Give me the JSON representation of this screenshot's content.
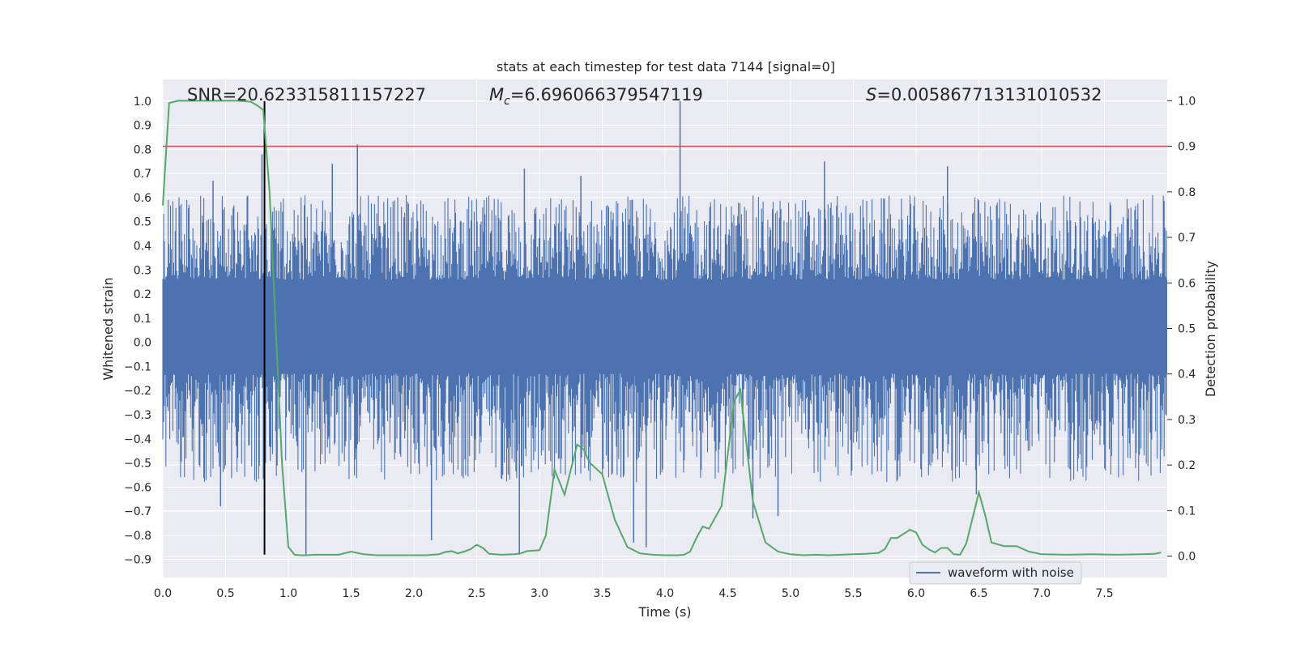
{
  "chart_data": {
    "type": "line",
    "title": "stats at each timestep for test data 7144 [signal=0]",
    "xlabel": "Time (s)",
    "ylabel_left": "Whitened strain",
    "ylabel_right": "Detection probability",
    "xlim": [
      0.0,
      8.0
    ],
    "ylim_left": [
      -0.975,
      1.09
    ],
    "ylim_right": [
      -0.047,
      1.047
    ],
    "x_ticks": [
      0.0,
      0.5,
      1.0,
      1.5,
      2.0,
      2.5,
      3.0,
      3.5,
      4.0,
      4.5,
      5.0,
      5.5,
      6.0,
      6.5,
      7.0,
      7.5
    ],
    "x_tick_labels": [
      "0.0",
      "0.5",
      "1.0",
      "1.5",
      "2.0",
      "2.5",
      "3.0",
      "3.5",
      "4.0",
      "4.5",
      "5.0",
      "5.5",
      "6.0",
      "6.5",
      "7.0",
      "7.5"
    ],
    "y_left_ticks": [
      1.0,
      0.9,
      0.8,
      0.7,
      0.6,
      0.5,
      0.4,
      0.3,
      0.2,
      0.1,
      0.0,
      -0.1,
      -0.2,
      -0.3,
      -0.4,
      -0.5,
      -0.6,
      -0.7,
      -0.8,
      -0.9
    ],
    "y_left_tick_labels": [
      "1.0",
      "0.9",
      "0.8",
      "0.7",
      "0.6",
      "0.5",
      "0.4",
      "0.3",
      "0.2",
      "0.1",
      "0.0",
      "−0.1",
      "−0.2",
      "−0.3",
      "−0.4",
      "−0.5",
      "−0.6",
      "−0.7",
      "−0.8",
      "−0.9"
    ],
    "y_right_ticks": [
      1.0,
      0.9,
      0.8,
      0.7,
      0.6,
      0.5,
      0.4,
      0.3,
      0.2,
      0.1,
      0.0
    ],
    "y_right_tick_labels": [
      "1.0",
      "0.9",
      "0.8",
      "0.7",
      "0.6",
      "0.5",
      "0.4",
      "0.3",
      "0.2",
      "0.1",
      "0.0"
    ],
    "grid": true,
    "legend": {
      "placement": "lower-right",
      "entries": [
        {
          "label": "waveform with noise",
          "color": "#4c72b0"
        }
      ]
    },
    "annotations": {
      "snr": "SNR=20.623315811157227",
      "mc_symbol": "M",
      "mc_sub": "c",
      "mc_value": "=6.696066379547119",
      "s_symbol": "S",
      "s_value": "=0.005867713131010532"
    },
    "threshold": {
      "axis": "right",
      "y": 0.9,
      "color": "#c44e52"
    },
    "marker_line": {
      "x": 0.81,
      "y_from": -0.88,
      "y_to": 1.0,
      "color": "#000000"
    },
    "series": [
      {
        "name": "waveform with noise",
        "axis": "left",
        "color": "#4c72b0",
        "kind": "noise-envelope",
        "x_range": [
          0.0,
          8.0
        ],
        "core_band": [
          -0.13,
          0.26
        ],
        "typical_envelope": [
          -0.5,
          0.5
        ],
        "peaks": [
          {
            "x": 0.4,
            "y": 0.67
          },
          {
            "x": 0.79,
            "y": 0.78
          },
          {
            "x": 1.55,
            "y": 0.82
          },
          {
            "x": 4.12,
            "y": 1.0
          },
          {
            "x": 5.27,
            "y": 0.75
          },
          {
            "x": 6.25,
            "y": 0.73
          },
          {
            "x": 3.33,
            "y": 0.69
          },
          {
            "x": 2.88,
            "y": 0.72
          },
          {
            "x": 1.35,
            "y": 0.74
          }
        ],
        "troughs": [
          {
            "x": 1.14,
            "y": -0.88
          },
          {
            "x": 2.14,
            "y": -0.82
          },
          {
            "x": 2.84,
            "y": -0.88
          },
          {
            "x": 3.75,
            "y": -0.83
          },
          {
            "x": 3.85,
            "y": -0.85
          },
          {
            "x": 4.7,
            "y": -0.73
          },
          {
            "x": 4.9,
            "y": -0.72
          },
          {
            "x": 0.46,
            "y": -0.68
          },
          {
            "x": 6.48,
            "y": -0.63
          }
        ]
      },
      {
        "name": "detection probability",
        "axis": "right",
        "color": "#55a868",
        "x": [
          0.0,
          0.05,
          0.12,
          0.2,
          0.3,
          0.4,
          0.5,
          0.6,
          0.7,
          0.75,
          0.8,
          0.85,
          0.9,
          0.95,
          1.0,
          1.05,
          1.1,
          1.15,
          1.2,
          1.3,
          1.4,
          1.5,
          1.6,
          1.7,
          1.8,
          1.9,
          2.0,
          2.1,
          2.2,
          2.25,
          2.3,
          2.35,
          2.4,
          2.45,
          2.5,
          2.55,
          2.6,
          2.7,
          2.8,
          2.85,
          2.9,
          3.0,
          3.05,
          3.12,
          3.2,
          3.3,
          3.35,
          3.4,
          3.5,
          3.6,
          3.7,
          3.8,
          3.9,
          4.0,
          4.1,
          4.15,
          4.2,
          4.25,
          4.3,
          4.35,
          4.45,
          4.55,
          4.6,
          4.7,
          4.8,
          4.9,
          5.0,
          5.1,
          5.2,
          5.3,
          5.4,
          5.5,
          5.6,
          5.7,
          5.75,
          5.8,
          5.85,
          5.95,
          6.0,
          6.05,
          6.1,
          6.15,
          6.2,
          6.25,
          6.3,
          6.35,
          6.4,
          6.5,
          6.55,
          6.6,
          6.7,
          6.8,
          6.9,
          7.0,
          7.2,
          7.4,
          7.6,
          7.8,
          7.9,
          7.95
        ],
        "y": [
          0.77,
          0.995,
          1.0,
          1.0,
          1.0,
          1.0,
          1.0,
          1.0,
          0.998,
          0.99,
          0.98,
          0.8,
          0.5,
          0.2,
          0.02,
          0.003,
          0.002,
          0.002,
          0.003,
          0.003,
          0.003,
          0.01,
          0.004,
          0.002,
          0.002,
          0.002,
          0.002,
          0.002,
          0.004,
          0.009,
          0.011,
          0.006,
          0.01,
          0.015,
          0.025,
          0.018,
          0.005,
          0.003,
          0.004,
          0.006,
          0.011,
          0.013,
          0.045,
          0.19,
          0.135,
          0.245,
          0.235,
          0.205,
          0.18,
          0.08,
          0.02,
          0.006,
          0.003,
          0.002,
          0.002,
          0.003,
          0.01,
          0.04,
          0.065,
          0.06,
          0.11,
          0.34,
          0.365,
          0.12,
          0.03,
          0.01,
          0.004,
          0.002,
          0.003,
          0.002,
          0.003,
          0.004,
          0.005,
          0.007,
          0.015,
          0.04,
          0.04,
          0.058,
          0.052,
          0.025,
          0.015,
          0.008,
          0.018,
          0.018,
          0.004,
          0.003,
          0.028,
          0.14,
          0.09,
          0.03,
          0.022,
          0.022,
          0.01,
          0.004,
          0.003,
          0.004,
          0.003,
          0.004,
          0.005,
          0.008
        ]
      }
    ]
  }
}
